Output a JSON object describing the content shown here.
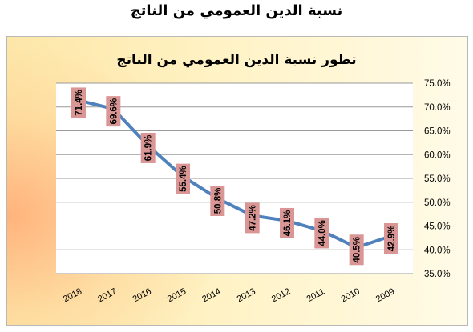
{
  "page": {
    "heading": "نسبة الدين العمومي من الناتج"
  },
  "colors": {
    "line": "#4f81bd",
    "label_box": "#d99694",
    "grid": "#9a9a9a"
  },
  "chart_data": {
    "type": "line",
    "title": "تطور نسبة الدين العمومي من الناتج",
    "xlabel": "",
    "ylabel": "",
    "categories": [
      "2018",
      "2017",
      "2016",
      "2015",
      "2014",
      "2013",
      "2012",
      "2011",
      "2010",
      "2009"
    ],
    "series": [
      {
        "values": [
          71.4,
          69.6,
          61.9,
          55.4,
          50.8,
          47.2,
          46.1,
          44.0,
          40.5,
          42.9
        ]
      }
    ],
    "ylim": [
      35,
      75
    ],
    "yticks": [
      75,
      70,
      65,
      60,
      55,
      50,
      45,
      40,
      35
    ],
    "y_axis_position": "right",
    "value_format": "percent_1dp",
    "grid": true,
    "legend": "none"
  }
}
